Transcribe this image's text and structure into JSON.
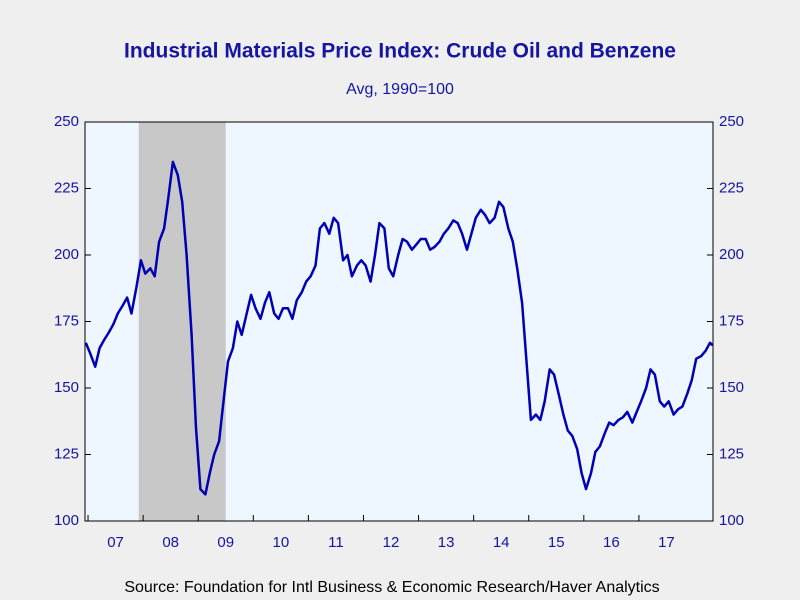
{
  "chart_data": {
    "type": "line",
    "title": "Industrial Materials Price Index: Crude Oil and Benzene",
    "subtitle": "Avg, 1990=100",
    "source": "Source:  Foundation for Intl Business & Economic Research/Haver Analytics",
    "xlim": [
      2006.945,
      2018.345
    ],
    "xticks": [
      {
        "value": 2007.5,
        "label": "07"
      },
      {
        "value": 2008.5,
        "label": "08"
      },
      {
        "value": 2009.5,
        "label": "09"
      },
      {
        "value": 2010.5,
        "label": "10"
      },
      {
        "value": 2011.5,
        "label": "11"
      },
      {
        "value": 2012.5,
        "label": "12"
      },
      {
        "value": 2013.5,
        "label": "13"
      },
      {
        "value": 2014.5,
        "label": "14"
      },
      {
        "value": 2015.5,
        "label": "15"
      },
      {
        "value": 2016.5,
        "label": "16"
      },
      {
        "value": 2017.5,
        "label": "17"
      }
    ],
    "ylim": [
      100,
      250
    ],
    "yticks": [
      100,
      125,
      150,
      175,
      200,
      225,
      250
    ],
    "y2lim": [
      100,
      250
    ],
    "y2ticks": [
      100,
      125,
      150,
      175,
      200,
      225,
      250
    ],
    "recession": [
      2007.92,
      2009.5
    ],
    "recession_color": "#c8c8c8",
    "background": "#eef6ff",
    "x": [
      2006.96,
      2007.04,
      2007.13,
      2007.21,
      2007.29,
      2007.38,
      2007.46,
      2007.54,
      2007.63,
      2007.71,
      2007.79,
      2007.88,
      2007.96,
      2008.04,
      2008.13,
      2008.21,
      2008.29,
      2008.38,
      2008.46,
      2008.54,
      2008.63,
      2008.71,
      2008.79,
      2008.88,
      2008.96,
      2009.04,
      2009.13,
      2009.21,
      2009.29,
      2009.38,
      2009.46,
      2009.54,
      2009.63,
      2009.71,
      2009.79,
      2009.88,
      2009.96,
      2010.04,
      2010.13,
      2010.21,
      2010.29,
      2010.38,
      2010.46,
      2010.54,
      2010.63,
      2010.71,
      2010.79,
      2010.88,
      2010.96,
      2011.04,
      2011.13,
      2011.21,
      2011.29,
      2011.38,
      2011.46,
      2011.54,
      2011.63,
      2011.71,
      2011.79,
      2011.88,
      2011.96,
      2012.04,
      2012.13,
      2012.21,
      2012.29,
      2012.38,
      2012.46,
      2012.54,
      2012.63,
      2012.71,
      2012.79,
      2012.88,
      2012.96,
      2013.04,
      2013.13,
      2013.21,
      2013.29,
      2013.38,
      2013.46,
      2013.54,
      2013.63,
      2013.71,
      2013.79,
      2013.88,
      2013.96,
      2014.04,
      2014.13,
      2014.21,
      2014.29,
      2014.38,
      2014.46,
      2014.54,
      2014.63,
      2014.71,
      2014.79,
      2014.88,
      2014.96,
      2015.04,
      2015.13,
      2015.21,
      2015.29,
      2015.38,
      2015.46,
      2015.54,
      2015.63,
      2015.71,
      2015.79,
      2015.88,
      2015.96,
      2016.04,
      2016.13,
      2016.21,
      2016.29,
      2016.38,
      2016.46,
      2016.54,
      2016.63,
      2016.71,
      2016.79,
      2016.88,
      2016.96,
      2017.04,
      2017.13,
      2017.21,
      2017.29,
      2017.38,
      2017.46,
      2017.54,
      2017.63,
      2017.71,
      2017.79,
      2017.88,
      2017.96,
      2018.04,
      2018.13,
      2018.21,
      2018.29,
      2018.34
    ],
    "series": [
      {
        "name": "Crude Oil and Benzene",
        "color": "#0000b4",
        "values": [
          167,
          163,
          158,
          165,
          168,
          171,
          174,
          178,
          181,
          184,
          178,
          188,
          198,
          193,
          195,
          192,
          205,
          210,
          222,
          235,
          230,
          220,
          200,
          170,
          135,
          112,
          110,
          118,
          125,
          130,
          145,
          160,
          165,
          175,
          170,
          178,
          185,
          180,
          176,
          182,
          186,
          178,
          176,
          180,
          180,
          176,
          183,
          186,
          190,
          192,
          196,
          210,
          212,
          208,
          214,
          212,
          198,
          200,
          192,
          196,
          198,
          196,
          190,
          200,
          212,
          210,
          195,
          192,
          200,
          206,
          205,
          202,
          204,
          206,
          206,
          202,
          203,
          205,
          208,
          210,
          213,
          212,
          208,
          202,
          208,
          214,
          217,
          215,
          212,
          214,
          220,
          218,
          210,
          205,
          195,
          182,
          160,
          138,
          140,
          138,
          145,
          157,
          155,
          148,
          140,
          134,
          132,
          127,
          118,
          112,
          118,
          126,
          128,
          133,
          137,
          136,
          138,
          139,
          141,
          137,
          141,
          145,
          150,
          157,
          155,
          145,
          143,
          145,
          140,
          142,
          143,
          148,
          153,
          161,
          162,
          164,
          167,
          166
        ]
      }
    ]
  }
}
